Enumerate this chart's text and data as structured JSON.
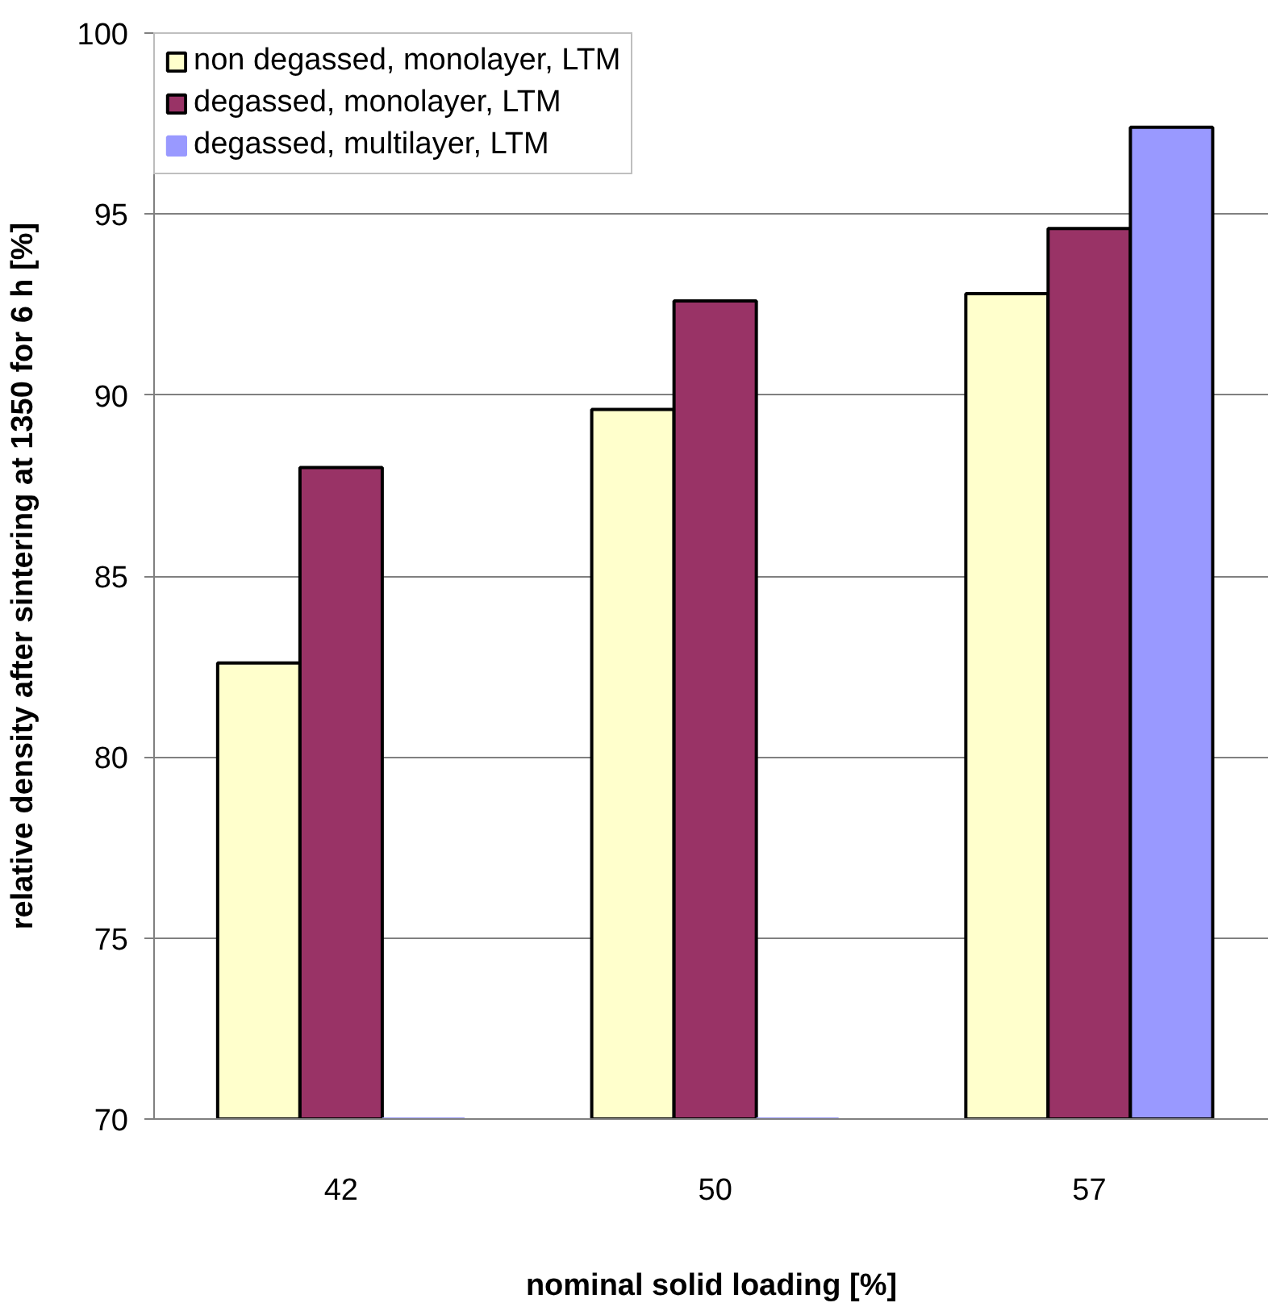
{
  "chart_data": {
    "type": "bar",
    "xlabel": "nominal solid loading [%]",
    "ylabel": "relative density after sintering at 1350 for 6 h [%]",
    "categories": [
      "42",
      "50",
      "57"
    ],
    "series": [
      {
        "name": "non degassed, monolayer, LTM",
        "color": "#ffffcc",
        "values": [
          82.6,
          89.6,
          92.8
        ]
      },
      {
        "name": "degassed, monolayer, LTM",
        "color": "#993366",
        "values": [
          88.0,
          92.6,
          94.6
        ]
      },
      {
        "name": "degassed, multilayer, LTM",
        "color": "#9999ff",
        "values": [
          70,
          70,
          97.4
        ]
      }
    ],
    "ylim": [
      70,
      100
    ],
    "yticks": [
      70,
      75,
      80,
      85,
      90,
      95,
      100
    ],
    "grid": "y",
    "legend": "top left"
  }
}
